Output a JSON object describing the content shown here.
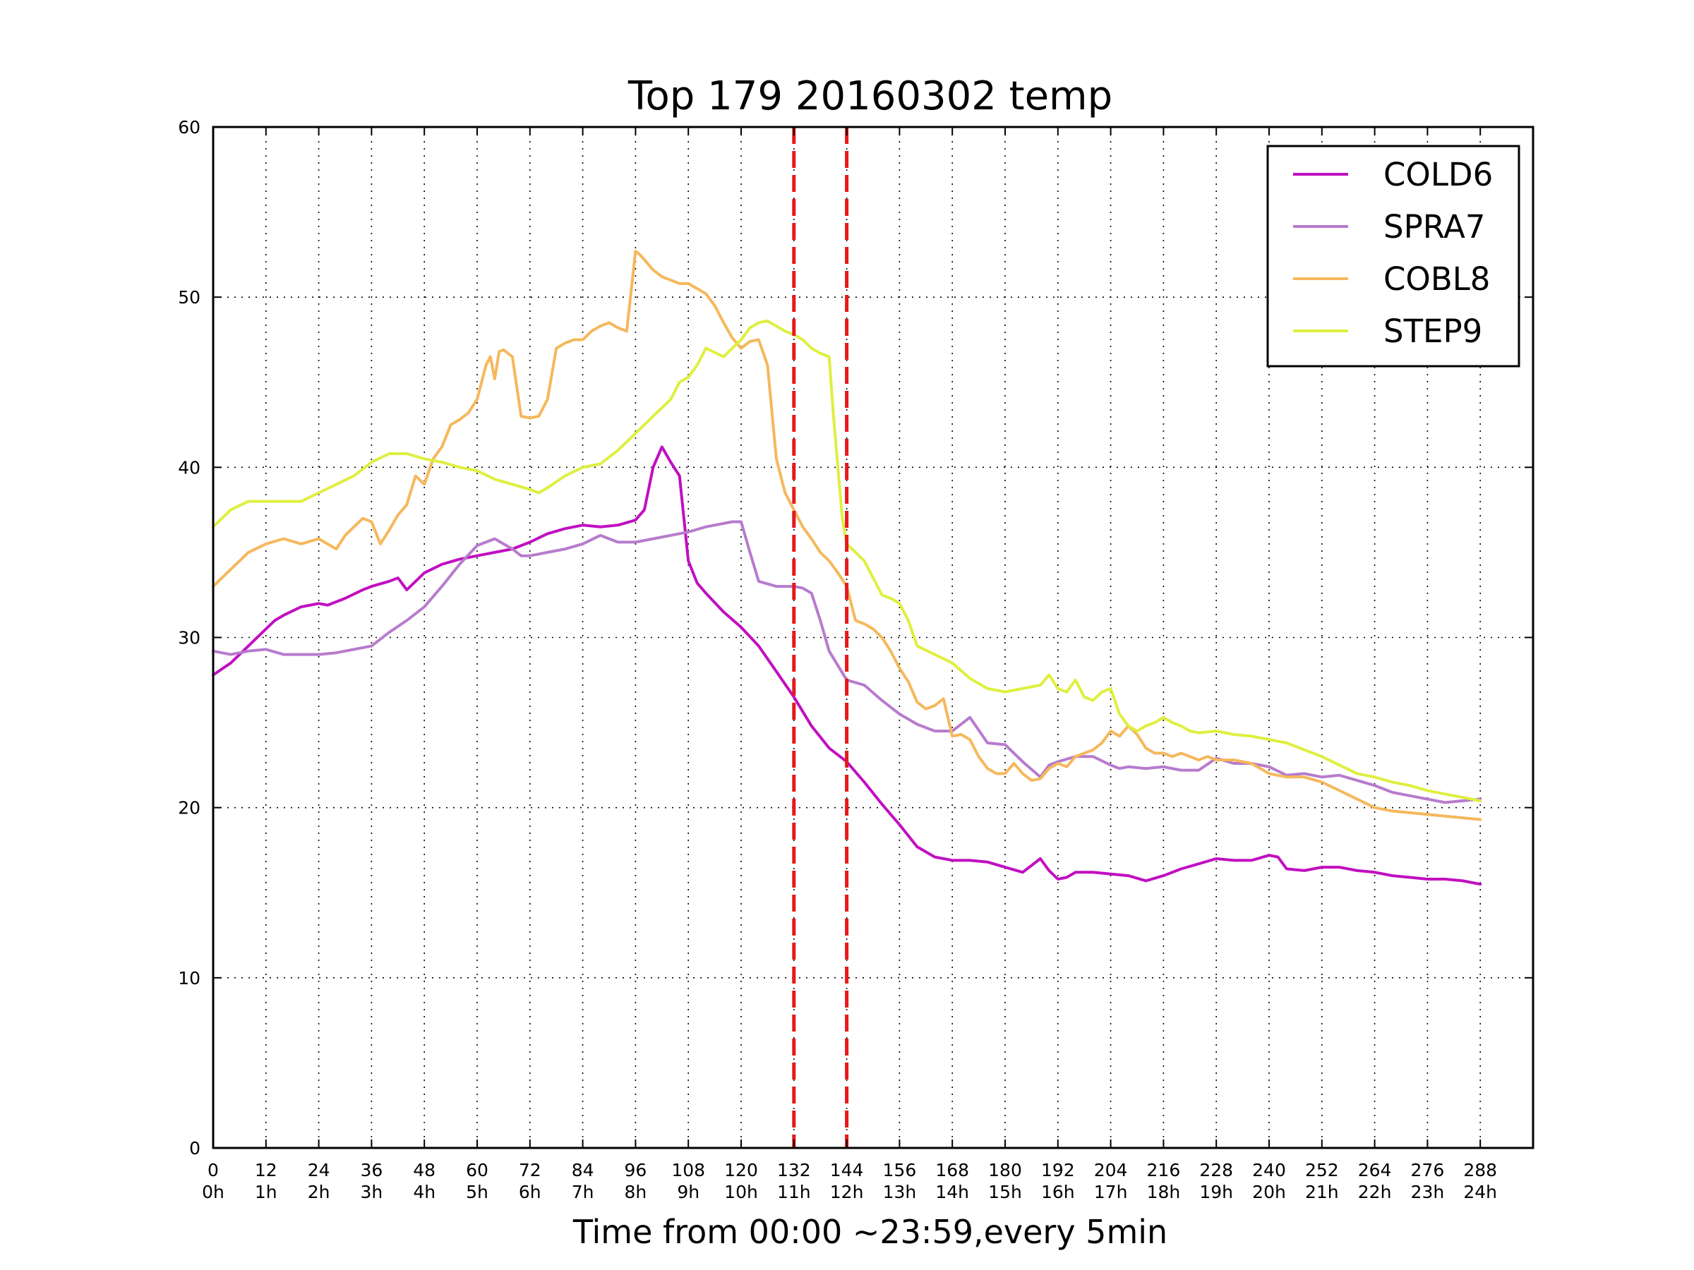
{
  "chart_data": {
    "type": "line",
    "title": "Top 179 20160302 temp",
    "xlabel": "Time from 00:00 ~23:59,every 5min",
    "ylabel": "",
    "xlim": [
      0,
      300
    ],
    "ylim": [
      0,
      60
    ],
    "grid": true,
    "legend_position": "top-right",
    "yticks": [
      "0",
      "10",
      "20",
      "30",
      "40",
      "50",
      "60"
    ],
    "xticks": [
      {
        "value": 0,
        "line1": "0",
        "line2": "0h"
      },
      {
        "value": 12,
        "line1": "12",
        "line2": "1h"
      },
      {
        "value": 24,
        "line1": "24",
        "line2": "2h"
      },
      {
        "value": 36,
        "line1": "36",
        "line2": "3h"
      },
      {
        "value": 48,
        "line1": "48",
        "line2": "4h"
      },
      {
        "value": 60,
        "line1": "60",
        "line2": "5h"
      },
      {
        "value": 72,
        "line1": "72",
        "line2": "6h"
      },
      {
        "value": 84,
        "line1": "84",
        "line2": "7h"
      },
      {
        "value": 96,
        "line1": "96",
        "line2": "8h"
      },
      {
        "value": 108,
        "line1": "108",
        "line2": "9h"
      },
      {
        "value": 120,
        "line1": "120",
        "line2": "10h"
      },
      {
        "value": 132,
        "line1": "132",
        "line2": "11h"
      },
      {
        "value": 144,
        "line1": "144",
        "line2": "12h"
      },
      {
        "value": 156,
        "line1": "156",
        "line2": "13h"
      },
      {
        "value": 168,
        "line1": "168",
        "line2": "14h"
      },
      {
        "value": 180,
        "line1": "180",
        "line2": "15h"
      },
      {
        "value": 192,
        "line1": "192",
        "line2": "16h"
      },
      {
        "value": 204,
        "line1": "204",
        "line2": "17h"
      },
      {
        "value": 216,
        "line1": "216",
        "line2": "18h"
      },
      {
        "value": 228,
        "line1": "228",
        "line2": "19h"
      },
      {
        "value": 240,
        "line1": "240",
        "line2": "20h"
      },
      {
        "value": 252,
        "line1": "252",
        "line2": "21h"
      },
      {
        "value": 264,
        "line1": "264",
        "line2": "22h"
      },
      {
        "value": 276,
        "line1": "276",
        "line2": "23h"
      },
      {
        "value": 288,
        "line1": "288",
        "line2": "24h"
      }
    ],
    "vertical_markers": [
      {
        "x": 132,
        "color": "#e31a1c",
        "style": "dashed"
      },
      {
        "x": 144,
        "color": "#e31a1c",
        "style": "dashed"
      }
    ],
    "series": [
      {
        "name": "COLD6",
        "color": "#c10fc1",
        "x": [
          0,
          4,
          8,
          12,
          14,
          16,
          20,
          24,
          26,
          30,
          34,
          36,
          40,
          42,
          44,
          48,
          52,
          56,
          60,
          64,
          68,
          72,
          76,
          80,
          84,
          88,
          92,
          96,
          98,
          100,
          102,
          104,
          106,
          108,
          110,
          112,
          116,
          120,
          124,
          128,
          132,
          136,
          140,
          144,
          148,
          152,
          156,
          160,
          164,
          168,
          172,
          176,
          180,
          184,
          188,
          190,
          192,
          194,
          196,
          200,
          204,
          208,
          212,
          216,
          220,
          224,
          228,
          232,
          236,
          240,
          242,
          244,
          248,
          252,
          256,
          260,
          264,
          268,
          272,
          276,
          280,
          284,
          288
        ],
        "y": [
          27.8,
          28.5,
          29.5,
          30.5,
          31.0,
          31.3,
          31.8,
          32.0,
          31.9,
          32.3,
          32.8,
          33.0,
          33.3,
          33.5,
          32.8,
          33.8,
          34.3,
          34.6,
          34.8,
          35.0,
          35.2,
          35.6,
          36.1,
          36.4,
          36.6,
          36.5,
          36.6,
          36.9,
          37.5,
          40.0,
          41.2,
          40.3,
          39.5,
          34.5,
          33.2,
          32.6,
          31.5,
          30.6,
          29.5,
          28.0,
          26.5,
          24.8,
          23.5,
          22.7,
          21.5,
          20.2,
          19.0,
          17.7,
          17.1,
          16.9,
          16.9,
          16.8,
          16.5,
          16.2,
          17.0,
          16.3,
          15.8,
          15.9,
          16.2,
          16.2,
          16.1,
          16.0,
          15.7,
          16.0,
          16.4,
          16.7,
          17.0,
          16.9,
          16.9,
          17.2,
          17.1,
          16.4,
          16.3,
          16.5,
          16.5,
          16.3,
          16.2,
          16.0,
          15.9,
          15.8,
          15.8,
          15.7,
          15.5
        ]
      },
      {
        "name": "SPRA7",
        "color": "#b77bcd",
        "x": [
          0,
          4,
          8,
          12,
          16,
          20,
          24,
          28,
          32,
          36,
          40,
          44,
          48,
          52,
          56,
          60,
          64,
          66,
          68,
          70,
          72,
          76,
          80,
          84,
          88,
          92,
          96,
          100,
          104,
          108,
          112,
          116,
          118,
          120,
          122,
          124,
          128,
          132,
          134,
          136,
          138,
          140,
          144,
          148,
          152,
          156,
          160,
          164,
          168,
          172,
          176,
          180,
          184,
          188,
          190,
          192,
          196,
          200,
          204,
          206,
          208,
          212,
          216,
          220,
          224,
          228,
          232,
          236,
          240,
          244,
          248,
          252,
          256,
          260,
          264,
          268,
          272,
          276,
          280,
          284,
          288
        ],
        "y": [
          29.2,
          29.0,
          29.2,
          29.3,
          29.0,
          29.0,
          29.0,
          29.1,
          29.3,
          29.5,
          30.3,
          31.0,
          31.8,
          33.0,
          34.3,
          35.4,
          35.8,
          35.5,
          35.2,
          34.8,
          34.8,
          35.0,
          35.2,
          35.5,
          36.0,
          35.6,
          35.6,
          35.8,
          36.0,
          36.2,
          36.5,
          36.7,
          36.8,
          36.8,
          35.0,
          33.3,
          33.0,
          33.0,
          32.9,
          32.6,
          31.0,
          29.2,
          27.5,
          27.2,
          26.3,
          25.5,
          24.9,
          24.5,
          24.5,
          25.3,
          23.8,
          23.7,
          22.7,
          21.8,
          22.5,
          22.7,
          23.0,
          23.0,
          22.5,
          22.3,
          22.4,
          22.3,
          22.4,
          22.2,
          22.2,
          22.9,
          22.6,
          22.6,
          22.4,
          21.9,
          22.0,
          21.8,
          21.9,
          21.6,
          21.3,
          20.9,
          20.7,
          20.5,
          20.3,
          20.4,
          20.5
        ]
      },
      {
        "name": "COBL8",
        "color": "#f5b85c",
        "x": [
          0,
          4,
          8,
          12,
          16,
          20,
          24,
          26,
          28,
          30,
          32,
          34,
          36,
          38,
          40,
          42,
          44,
          46,
          48,
          50,
          52,
          54,
          56,
          58,
          60,
          62,
          63,
          64,
          65,
          66,
          68,
          70,
          72,
          74,
          76,
          78,
          80,
          82,
          84,
          86,
          88,
          90,
          92,
          94,
          96,
          97,
          98,
          100,
          102,
          104,
          106,
          108,
          110,
          112,
          114,
          116,
          118,
          120,
          122,
          124,
          126,
          128,
          130,
          132,
          134,
          136,
          138,
          140,
          142,
          144,
          146,
          148,
          150,
          152,
          154,
          156,
          158,
          160,
          162,
          164,
          166,
          168,
          170,
          172,
          174,
          176,
          178,
          180,
          182,
          184,
          186,
          188,
          190,
          192,
          194,
          196,
          198,
          200,
          202,
          204,
          206,
          208,
          210,
          212,
          214,
          216,
          218,
          220,
          222,
          224,
          226,
          228,
          232,
          236,
          240,
          244,
          248,
          252,
          256,
          260,
          264,
          268,
          272,
          276,
          280,
          284,
          288
        ],
        "y": [
          33.0,
          34.0,
          35.0,
          35.5,
          35.8,
          35.5,
          35.8,
          35.5,
          35.2,
          36.0,
          36.5,
          37.0,
          36.8,
          35.5,
          36.3,
          37.2,
          37.8,
          39.5,
          39.0,
          40.5,
          41.2,
          42.5,
          42.8,
          43.2,
          44.0,
          46.0,
          46.5,
          45.2,
          46.8,
          46.9,
          46.5,
          43.0,
          42.9,
          43.0,
          44.0,
          47.0,
          47.3,
          47.5,
          47.5,
          48.0,
          48.3,
          48.5,
          48.2,
          48.0,
          52.7,
          52.5,
          52.2,
          51.6,
          51.2,
          51.0,
          50.8,
          50.8,
          50.5,
          50.2,
          49.5,
          48.5,
          47.6,
          47.0,
          47.4,
          47.5,
          46.0,
          40.5,
          38.5,
          37.5,
          36.5,
          35.8,
          35.0,
          34.5,
          33.8,
          33.0,
          31.0,
          30.8,
          30.5,
          30.0,
          29.2,
          28.2,
          27.4,
          26.2,
          25.8,
          26.0,
          26.4,
          24.2,
          24.3,
          24.0,
          23.0,
          22.3,
          22.0,
          22.0,
          22.6,
          22.0,
          21.6,
          21.7,
          22.3,
          22.6,
          22.4,
          23.0,
          23.2,
          23.4,
          23.8,
          24.5,
          24.2,
          24.8,
          24.3,
          23.5,
          23.2,
          23.2,
          23.0,
          23.2,
          23.0,
          22.8,
          23.0,
          22.8,
          22.8,
          22.6,
          22.0,
          21.8,
          21.8,
          21.5,
          21.0,
          20.5,
          20.0,
          19.8,
          19.7,
          19.6,
          19.5,
          19.4,
          19.3
        ]
      },
      {
        "name": "STEP9",
        "color": "#dfef3f",
        "x": [
          0,
          4,
          8,
          12,
          16,
          20,
          24,
          28,
          32,
          36,
          40,
          44,
          48,
          52,
          56,
          60,
          64,
          68,
          72,
          74,
          76,
          80,
          84,
          88,
          92,
          96,
          100,
          104,
          106,
          108,
          110,
          112,
          116,
          118,
          120,
          122,
          124,
          126,
          128,
          130,
          132,
          134,
          136,
          138,
          140,
          141,
          142,
          143,
          144,
          146,
          148,
          150,
          152,
          154,
          156,
          158,
          160,
          164,
          168,
          172,
          176,
          180,
          184,
          188,
          190,
          192,
          194,
          196,
          198,
          200,
          202,
          204,
          206,
          208,
          210,
          212,
          214,
          216,
          218,
          220,
          222,
          224,
          228,
          232,
          236,
          240,
          244,
          248,
          252,
          256,
          260,
          264,
          268,
          272,
          276,
          280,
          284,
          288
        ],
        "y": [
          36.5,
          37.5,
          38.0,
          38.0,
          38.0,
          38.0,
          38.5,
          39.0,
          39.5,
          40.3,
          40.8,
          40.8,
          40.5,
          40.3,
          40.0,
          39.8,
          39.3,
          39.0,
          38.7,
          38.5,
          38.8,
          39.5,
          40.0,
          40.2,
          41.0,
          42.0,
          43.0,
          44.0,
          45.0,
          45.3,
          46.0,
          47.0,
          46.5,
          47.0,
          47.5,
          48.2,
          48.5,
          48.6,
          48.3,
          48.0,
          47.8,
          47.5,
          47.0,
          46.7,
          46.5,
          43.0,
          40.0,
          37.0,
          35.5,
          35.0,
          34.5,
          33.5,
          32.5,
          32.3,
          32.0,
          31.0,
          29.5,
          29.0,
          28.5,
          27.6,
          27.0,
          26.8,
          27.0,
          27.2,
          27.8,
          27.0,
          26.8,
          27.5,
          26.5,
          26.3,
          26.8,
          27.0,
          25.5,
          24.8,
          24.5,
          24.8,
          25.0,
          25.3,
          25.0,
          24.8,
          24.5,
          24.4,
          24.5,
          24.3,
          24.2,
          24.0,
          23.8,
          23.4,
          23.0,
          22.5,
          22.0,
          21.8,
          21.5,
          21.3,
          21.0,
          20.8,
          20.6,
          20.4
        ]
      }
    ]
  }
}
